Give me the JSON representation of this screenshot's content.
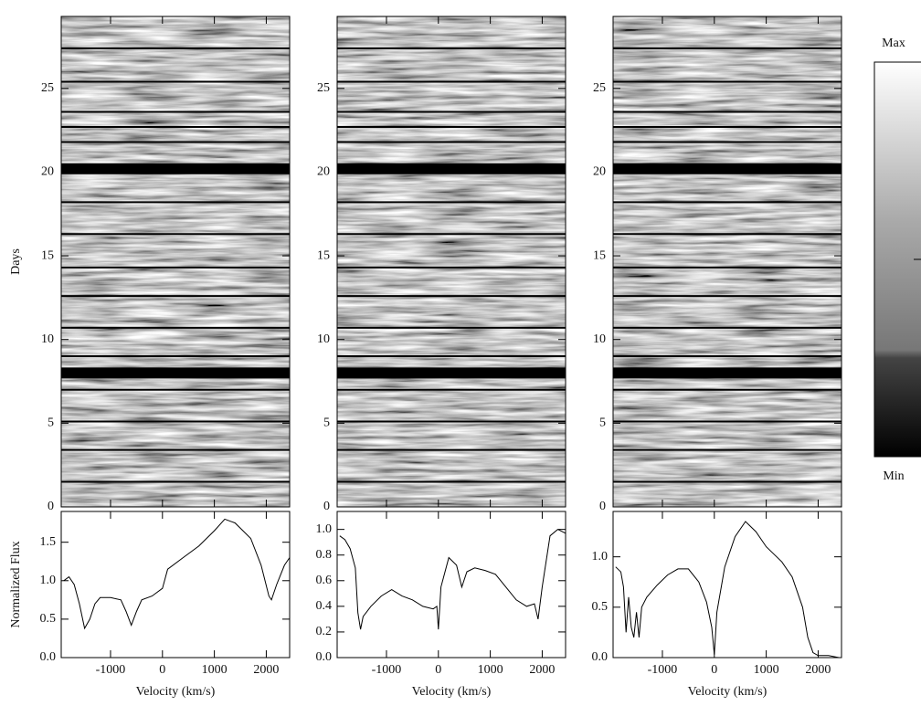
{
  "chart_data": [
    {
      "type": "line",
      "xlabel": "Velocity (km/s)",
      "ylabel": "Normalized Flux",
      "xlim": [
        -1950,
        2450
      ],
      "xticks": [
        -1000,
        0,
        1000,
        2000
      ],
      "ylim": [
        0,
        1.9
      ],
      "yticks": [
        {
          "value": 0,
          "label": "0.0"
        },
        {
          "value": 0.5,
          "label": "0.5"
        },
        {
          "value": 1,
          "label": "1.0"
        },
        {
          "value": 1.5,
          "label": "1.5"
        }
      ],
      "x": [
        -1900,
        -1800,
        -1700,
        -1600,
        -1500,
        -1400,
        -1300,
        -1200,
        -1000,
        -800,
        -700,
        -600,
        -500,
        -400,
        -200,
        0,
        100,
        400,
        700,
        1000,
        1200,
        1400,
        1700,
        1900,
        2050,
        2100,
        2200,
        2350,
        2450
      ],
      "values": [
        1.0,
        1.05,
        0.95,
        0.7,
        0.38,
        0.5,
        0.7,
        0.78,
        0.78,
        0.75,
        0.6,
        0.42,
        0.6,
        0.75,
        0.8,
        0.9,
        1.15,
        1.3,
        1.45,
        1.65,
        1.8,
        1.75,
        1.55,
        1.2,
        0.8,
        0.75,
        0.95,
        1.2,
        1.3
      ],
      "spectrum": {
        "ylabel": "Days",
        "ylim": [
          0,
          29.3
        ],
        "yticks": [
          0,
          5,
          10,
          15,
          20,
          25
        ],
        "gaps": [
          27.4,
          25.4,
          23.6,
          22.7,
          21.8,
          18.2,
          16.3,
          14.3,
          12.6,
          10.7,
          9.0,
          7.0,
          5.1,
          3.4,
          1.5
        ],
        "wide_gaps": [
          20.2,
          8.0
        ]
      }
    },
    {
      "type": "line",
      "xlabel": "Velocity (km/s)",
      "xlim": [
        -1950,
        2450
      ],
      "xticks": [
        -1000,
        0,
        1000,
        2000
      ],
      "ylim": [
        0,
        1.14
      ],
      "yticks": [
        {
          "value": 0,
          "label": "0.0"
        },
        {
          "value": 0.2,
          "label": "0.2"
        },
        {
          "value": 0.4,
          "label": "0.4"
        },
        {
          "value": 0.6,
          "label": "0.6"
        },
        {
          "value": 0.8,
          "label": "0.8"
        },
        {
          "value": 1,
          "label": "1.0"
        }
      ],
      "x": [
        -1900,
        -1800,
        -1700,
        -1600,
        -1550,
        -1500,
        -1450,
        -1300,
        -1100,
        -900,
        -700,
        -500,
        -300,
        -100,
        -30,
        0,
        50,
        200,
        350,
        450,
        550,
        700,
        900,
        1100,
        1300,
        1500,
        1700,
        1850,
        1920,
        2000,
        2150,
        2300,
        2450
      ],
      "values": [
        0.95,
        0.92,
        0.85,
        0.7,
        0.35,
        0.22,
        0.32,
        0.4,
        0.48,
        0.53,
        0.48,
        0.45,
        0.4,
        0.38,
        0.4,
        0.22,
        0.55,
        0.78,
        0.72,
        0.55,
        0.67,
        0.7,
        0.68,
        0.65,
        0.55,
        0.45,
        0.4,
        0.42,
        0.3,
        0.55,
        0.95,
        1.0,
        0.97
      ],
      "spectrum": {
        "ylim": [
          0,
          29.3
        ],
        "yticks": [
          0,
          5,
          10,
          15,
          20,
          25
        ],
        "gaps": [
          27.4,
          25.4,
          23.6,
          22.7,
          21.8,
          18.2,
          16.3,
          14.3,
          12.6,
          10.7,
          9.0,
          7.0,
          5.1,
          3.4,
          1.5
        ],
        "wide_gaps": [
          20.2,
          8.0
        ]
      }
    },
    {
      "type": "line",
      "xlabel": "Velocity (km/s)",
      "xlim": [
        -1950,
        2450
      ],
      "xticks": [
        -1000,
        0,
        1000,
        2000
      ],
      "ylim": [
        0,
        1.45
      ],
      "yticks": [
        {
          "value": 0,
          "label": "0.0"
        },
        {
          "value": 0.5,
          "label": "0.5"
        },
        {
          "value": 1,
          "label": "1.0"
        }
      ],
      "x": [
        -1900,
        -1800,
        -1750,
        -1700,
        -1650,
        -1600,
        -1550,
        -1500,
        -1450,
        -1400,
        -1300,
        -1100,
        -900,
        -700,
        -500,
        -300,
        -150,
        -50,
        0,
        50,
        200,
        400,
        600,
        800,
        1000,
        1300,
        1500,
        1700,
        1800,
        1900,
        2000,
        2200,
        2400
      ],
      "values": [
        0.9,
        0.85,
        0.7,
        0.25,
        0.6,
        0.3,
        0.2,
        0.45,
        0.2,
        0.5,
        0.6,
        0.72,
        0.82,
        0.88,
        0.88,
        0.75,
        0.55,
        0.3,
        0.03,
        0.45,
        0.9,
        1.2,
        1.35,
        1.25,
        1.1,
        0.95,
        0.8,
        0.5,
        0.2,
        0.05,
        0.02,
        0.02,
        0.0
      ],
      "spectrum": {
        "ylim": [
          0,
          29.3
        ],
        "yticks": [
          0,
          5,
          10,
          15,
          20,
          25
        ],
        "gaps": [
          27.4,
          25.4,
          23.6,
          22.7,
          21.8,
          18.2,
          16.3,
          14.3,
          12.6,
          10.7,
          9.0,
          7.0,
          5.1,
          3.4,
          1.5
        ],
        "wide_gaps": [
          20.2,
          8.0
        ]
      }
    },
    {
      "type": "colorbar",
      "max_label": "Max",
      "min_label": "Min"
    }
  ]
}
